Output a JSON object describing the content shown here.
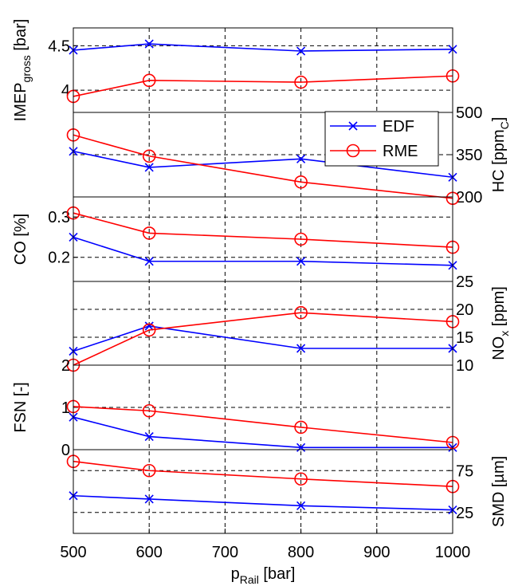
{
  "chart_data": {
    "type": "line",
    "x": [
      500,
      600,
      800,
      1000
    ],
    "xlabel": {
      "main": "p",
      "sub": "Rail",
      "suffix": " [bar]"
    },
    "xlim": [
      500,
      1000
    ],
    "xticks": [
      500,
      600,
      700,
      800,
      900,
      1000
    ],
    "grid": true,
    "legend": {
      "position": "top-right",
      "entries": [
        "EDF",
        "RME"
      ]
    },
    "colors": {
      "EDF": "#0000ff",
      "RME": "#ff0000"
    },
    "markers": {
      "EDF": "x",
      "RME": "circle"
    },
    "panels": [
      {
        "id": "imep",
        "ylabel": {
          "main": "IMEP",
          "sub": "gross",
          "suffix": " [bar]"
        },
        "axis_side": "left",
        "ylim": [
          3.75,
          4.7
        ],
        "ticks": [
          4,
          4.5
        ],
        "tick_labels": [
          "4",
          "4.5"
        ],
        "series": [
          {
            "name": "EDF",
            "x": [
              500,
              600,
              800,
              1000
            ],
            "y": [
              4.45,
              4.52,
              4.44,
              4.46
            ]
          },
          {
            "name": "RME",
            "x": [
              500,
              600,
              800,
              1000
            ],
            "y": [
              3.93,
              4.11,
              4.09,
              4.16
            ]
          }
        ]
      },
      {
        "id": "hc",
        "ylabel": {
          "main": "HC [ppm",
          "sub": "C",
          "suffix": "]"
        },
        "axis_side": "right",
        "ylim": [
          200,
          500
        ],
        "ticks": [
          200,
          350,
          500
        ],
        "tick_labels": [
          "200",
          "350",
          "500"
        ],
        "series": [
          {
            "name": "EDF",
            "x": [
              500,
              600,
              800,
              1000
            ],
            "y": [
              362,
              305,
              335,
              270
            ]
          },
          {
            "name": "RME",
            "x": [
              500,
              600,
              800,
              1000
            ],
            "y": [
              420,
              345,
              253,
              195
            ]
          }
        ]
      },
      {
        "id": "co",
        "ylabel": {
          "main": "CO [%]",
          "sub": "",
          "suffix": ""
        },
        "axis_side": "left",
        "ylim": [
          0.14,
          0.35
        ],
        "ticks": [
          0.2,
          0.3
        ],
        "tick_labels": [
          "0.2",
          "0.3"
        ],
        "series": [
          {
            "name": "EDF",
            "x": [
              500,
              600,
              800,
              1000
            ],
            "y": [
              0.25,
              0.19,
              0.19,
              0.18
            ]
          },
          {
            "name": "RME",
            "x": [
              500,
              600,
              800,
              1000
            ],
            "y": [
              0.31,
              0.26,
              0.245,
              0.225
            ]
          }
        ]
      },
      {
        "id": "nox",
        "ylabel": {
          "main": "NO",
          "sub": "x",
          "suffix": " [ppm]"
        },
        "axis_side": "right",
        "ylim": [
          10,
          25
        ],
        "ticks": [
          10,
          15,
          20,
          25
        ],
        "tick_labels": [
          "10",
          "15",
          "20",
          "25"
        ],
        "series": [
          {
            "name": "EDF",
            "x": [
              500,
              600,
              800,
              1000
            ],
            "y": [
              12.5,
              17.0,
              13.0,
              13.0
            ]
          },
          {
            "name": "RME",
            "x": [
              500,
              600,
              800,
              1000
            ],
            "y": [
              10.0,
              16.3,
              19.4,
              17.8
            ]
          }
        ]
      },
      {
        "id": "fsn",
        "ylabel": {
          "main": "FSN [-]",
          "sub": "",
          "suffix": ""
        },
        "axis_side": "left",
        "ylim": [
          0,
          2
        ],
        "ticks": [
          0,
          1,
          2
        ],
        "tick_labels": [
          "0",
          "1",
          "2"
        ],
        "series": [
          {
            "name": "EDF",
            "x": [
              500,
              600,
              800,
              1000
            ],
            "y": [
              0.77,
              0.31,
              0.05,
              0.05
            ]
          },
          {
            "name": "RME",
            "x": [
              500,
              600,
              800,
              1000
            ],
            "y": [
              1.02,
              0.92,
              0.53,
              0.17
            ]
          }
        ]
      },
      {
        "id": "smd",
        "ylabel": {
          "main": "SMD [µm]",
          "sub": "",
          "suffix": ""
        },
        "axis_side": "right",
        "ylim": [
          0,
          100
        ],
        "ticks": [
          25,
          75
        ],
        "tick_labels": [
          "25",
          "75"
        ],
        "series": [
          {
            "name": "EDF",
            "x": [
              500,
              600,
              800,
              1000
            ],
            "y": [
              45,
              41,
              33,
              28
            ]
          },
          {
            "name": "RME",
            "x": [
              500,
              600,
              800,
              1000
            ],
            "y": [
              86,
              75,
              65,
              56
            ]
          }
        ]
      }
    ]
  }
}
